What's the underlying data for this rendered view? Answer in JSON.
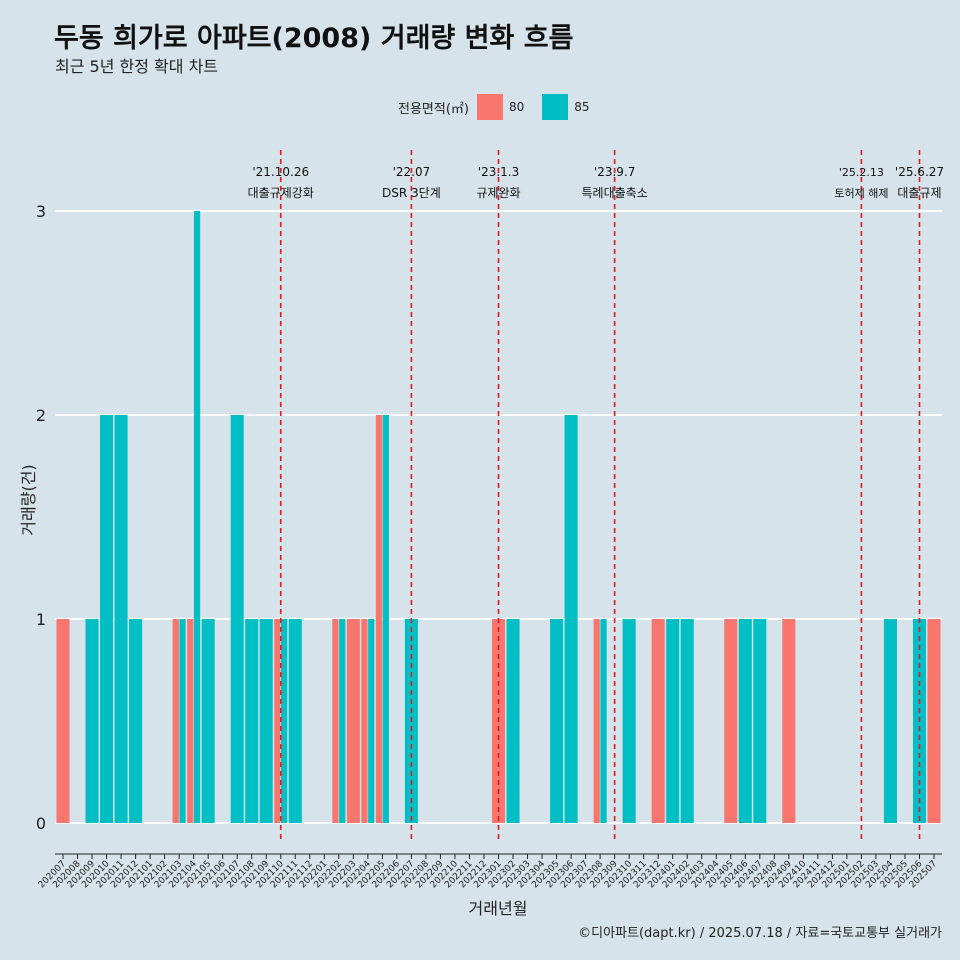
{
  "title": "두동 희가로 아파트(2008) 거래량 변화 흐름",
  "subtitle": "최근 5년 한정 확대 차트",
  "caption": "©디아파트(dapt.kr) / 2025.07.18 / 자료=국토교통부 실거래가",
  "legend": {
    "title": "전용면적(㎡)",
    "items": [
      {
        "label": "80",
        "color": "#F8766D"
      },
      {
        "label": "85",
        "color": "#00BFC4"
      }
    ]
  },
  "chart_data": {
    "type": "bar",
    "xlabel": "거래년월",
    "ylabel": "거래량(건)",
    "ylim": [
      0,
      3
    ],
    "y_ticks": [
      0,
      1,
      2,
      3
    ],
    "grid": true,
    "legend_position": "top",
    "categories": [
      "202007",
      "202008",
      "202009",
      "202010",
      "202011",
      "202012",
      "202101",
      "202102",
      "202103",
      "202104",
      "202105",
      "202106",
      "202107",
      "202108",
      "202109",
      "202110",
      "202111",
      "202112",
      "202201",
      "202202",
      "202203",
      "202204",
      "202205",
      "202206",
      "202207",
      "202208",
      "202209",
      "202210",
      "202211",
      "202212",
      "202301",
      "202302",
      "202303",
      "202304",
      "202305",
      "202306",
      "202307",
      "202308",
      "202309",
      "202310",
      "202311",
      "202312",
      "202401",
      "202402",
      "202403",
      "202404",
      "202405",
      "202406",
      "202407",
      "202408",
      "202409",
      "202410",
      "202411",
      "202412",
      "202501",
      "202502",
      "202503",
      "202504",
      "202505",
      "202506",
      "202507"
    ],
    "series": [
      {
        "name": "80",
        "color": "#F8766D",
        "values": [
          1,
          0,
          0,
          0,
          0,
          0,
          0,
          0,
          1,
          1,
          0,
          0,
          0,
          0,
          0,
          1,
          0,
          0,
          0,
          1,
          1,
          1,
          2,
          0,
          0,
          0,
          0,
          0,
          0,
          0,
          1,
          0,
          0,
          0,
          0,
          0,
          0,
          1,
          0,
          0,
          0,
          1,
          0,
          0,
          0,
          0,
          1,
          0,
          0,
          0,
          1,
          0,
          0,
          0,
          0,
          0,
          0,
          0,
          0,
          0,
          1
        ]
      },
      {
        "name": "85",
        "color": "#00BFC4",
        "values": [
          0,
          0,
          1,
          2,
          2,
          1,
          0,
          0,
          1,
          3,
          1,
          0,
          2,
          1,
          1,
          1,
          1,
          0,
          0,
          1,
          0,
          1,
          2,
          0,
          1,
          0,
          0,
          0,
          0,
          0,
          0,
          1,
          0,
          0,
          1,
          2,
          0,
          1,
          0,
          1,
          0,
          0,
          1,
          1,
          0,
          0,
          0,
          1,
          1,
          0,
          0,
          0,
          0,
          0,
          0,
          0,
          0,
          1,
          0,
          1,
          0
        ]
      }
    ],
    "annotations": [
      {
        "x": "202110",
        "date": "'21.10.26",
        "label": "대출규제강화"
      },
      {
        "x": "202207",
        "date": "'22.07",
        "label": "DSR 3단계"
      },
      {
        "x": "202301",
        "date": "'23.1.3",
        "label": "규제완화"
      },
      {
        "x": "202309",
        "date": "'23.9.7",
        "label": "특례대출축소"
      },
      {
        "x": "202502",
        "date": "'25.2.13",
        "label": "토허제 해제"
      },
      {
        "x": "202506",
        "date": "'25.6.27",
        "label": "대출규제"
      }
    ]
  }
}
